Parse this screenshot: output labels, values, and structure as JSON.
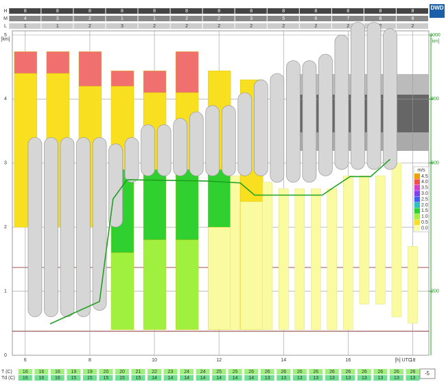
{
  "chart_data": {
    "type": "meteogram",
    "logo": "DWD",
    "x_label": "[h] UTC",
    "y_label": "[km]",
    "y2_label": "[km]",
    "xlim": [
      5.6,
      18.5
    ],
    "xticks": [
      6,
      8,
      10,
      12,
      14,
      16,
      18
    ],
    "ylim": [
      0,
      5
    ],
    "yticks": [
      0,
      1,
      2,
      3,
      4,
      5
    ],
    "y2lim": [
      0,
      1000
    ],
    "y2ticks": [
      200,
      600,
      800,
      1000
    ],
    "cloud_cover": {
      "rows": [
        "H",
        "M",
        "L"
      ],
      "hours": [
        6,
        7,
        8,
        9,
        10,
        11,
        12,
        13,
        14,
        15,
        16,
        17,
        18
      ],
      "values": [
        [
          8,
          8,
          8,
          8,
          8,
          8,
          8,
          8,
          8,
          8,
          8,
          8,
          8
        ],
        [
          4,
          3,
          2,
          1,
          1,
          2,
          2,
          3,
          5,
          6,
          7,
          8,
          8
        ],
        [
          1,
          1,
          2,
          3,
          2,
          2,
          2,
          2,
          2,
          2,
          2,
          2,
          2
        ]
      ]
    },
    "wind_bars": [
      {
        "x": 6,
        "segments": [
          [
            4.74,
            4.4,
            "#f07070"
          ],
          [
            4.4,
            2.0,
            "#f8e020"
          ]
        ]
      },
      {
        "x": 7,
        "segments": [
          [
            4.74,
            4.4,
            "#f07070"
          ],
          [
            4.4,
            2.0,
            "#f8e020"
          ]
        ]
      },
      {
        "x": 8,
        "segments": [
          [
            4.74,
            4.2,
            "#f07070"
          ],
          [
            4.2,
            2.0,
            "#f8e020"
          ]
        ]
      },
      {
        "x": 9,
        "segments": [
          [
            4.44,
            4.2,
            "#f07070"
          ],
          [
            4.2,
            2.9,
            "#f8e020"
          ],
          [
            2.9,
            1.6,
            "#30d030"
          ],
          [
            1.6,
            0.4,
            "#a0f040"
          ]
        ]
      },
      {
        "x": 10,
        "segments": [
          [
            4.44,
            4.1,
            "#f07070"
          ],
          [
            4.1,
            2.9,
            "#f8e020"
          ],
          [
            2.9,
            1.8,
            "#30d030"
          ],
          [
            1.8,
            0.4,
            "#a0f040"
          ]
        ]
      },
      {
        "x": 11,
        "segments": [
          [
            4.74,
            4.1,
            "#f07070"
          ],
          [
            4.1,
            2.9,
            "#f8e020"
          ],
          [
            2.9,
            1.8,
            "#30d030"
          ],
          [
            1.8,
            0.4,
            "#a0f040"
          ]
        ]
      },
      {
        "x": 12,
        "segments": [
          [
            4.44,
            2.9,
            "#f8e020"
          ],
          [
            2.9,
            2.0,
            "#30d030"
          ],
          [
            2.0,
            0.4,
            "#fafaa0"
          ]
        ]
      },
      {
        "x": 13,
        "segments": [
          [
            4.3,
            2.4,
            "#f8e020"
          ],
          [
            2.4,
            0.4,
            "#fafaa0"
          ]
        ]
      }
    ],
    "pale_bars": {
      "x": [
        12.5,
        13.5,
        14,
        14.5,
        15,
        15.5,
        16,
        16.5,
        17,
        17.5,
        18
      ],
      "top": [
        2.8,
        2.7,
        2.6,
        2.6,
        2.6,
        2.6,
        2.8,
        2.8,
        2.8,
        3.0,
        1.7
      ],
      "bottom": [
        0.4,
        0.4,
        0.4,
        0.4,
        0.4,
        0.4,
        0.4,
        0.8,
        0.8,
        0.6,
        0.5
      ]
    },
    "cloud_towers": {
      "x": [
        6.3,
        6.8,
        7.3,
        7.8,
        8.3,
        8.8,
        9.3,
        9.8,
        10.3,
        10.8,
        11.3,
        11.8,
        12.3,
        12.8,
        13.3,
        13.8,
        14.3,
        14.8,
        15.3,
        15.8,
        16.3,
        16.8,
        17.3
      ],
      "bottom": [
        0.6,
        0.6,
        0.6,
        0.6,
        0.7,
        2.0,
        2.7,
        2.8,
        2.8,
        2.8,
        2.8,
        2.8,
        2.8,
        2.8,
        2.8,
        2.7,
        2.7,
        2.7,
        2.8,
        2.9,
        2.9,
        2.9,
        2.9
      ],
      "top": [
        3.4,
        3.4,
        3.4,
        3.4,
        3.4,
        3.3,
        3.4,
        3.6,
        3.6,
        3.7,
        3.8,
        3.9,
        3.9,
        4.1,
        4.3,
        4.4,
        4.6,
        4.6,
        4.7,
        5.0,
        5.2,
        5.2,
        5.1
      ]
    },
    "series": [
      {
        "name": "boundary layer",
        "color": "#20a020",
        "x": [
          6.77,
          8.3,
          8.72,
          9.15,
          11.6,
          12.66,
          13.1,
          14.26,
          15.2,
          15.64,
          16.06,
          16.7,
          17.3
        ],
        "values": [
          0.49,
          0.84,
          2.44,
          2.74,
          2.72,
          2.69,
          2.5,
          2.5,
          2.5,
          2.65,
          2.79,
          2.79,
          3.06
        ]
      }
    ],
    "legend": {
      "title": "m/s",
      "labels": [
        "4.5",
        "4.0",
        "3.5",
        "3.0",
        "2.5",
        "2.0",
        "1.5",
        "1.0",
        "0.5",
        "0.0"
      ],
      "colors": [
        "#f0a000",
        "#f05050",
        "#d040d0",
        "#8040f0",
        "#4060f0",
        "#30c0c0",
        "#30d030",
        "#a0f040",
        "#f8e020",
        "#fafaa0"
      ]
    },
    "temperature": {
      "labels": [
        "T (C)",
        "Td (C)"
      ],
      "hours": [
        6,
        6.5,
        7,
        7.5,
        8,
        8.5,
        9,
        9.5,
        10,
        10.5,
        11,
        11.5,
        12,
        12.5,
        13,
        13.5,
        14,
        14.5,
        15,
        15.5,
        16,
        16.5,
        17,
        17.5,
        18
      ],
      "T": [
        16,
        16,
        16,
        19,
        19,
        20,
        20,
        21,
        22,
        23,
        24,
        24,
        25,
        25,
        26,
        26,
        26,
        26,
        26,
        26,
        26,
        26,
        26,
        26,
        26
      ],
      "Td": [
        16,
        16,
        16,
        15,
        15,
        15,
        15,
        15,
        14,
        14,
        14,
        14,
        14,
        14,
        14,
        13,
        13,
        13,
        13,
        13,
        13,
        13,
        13,
        13,
        13
      ]
    },
    "offset": "-5"
  }
}
